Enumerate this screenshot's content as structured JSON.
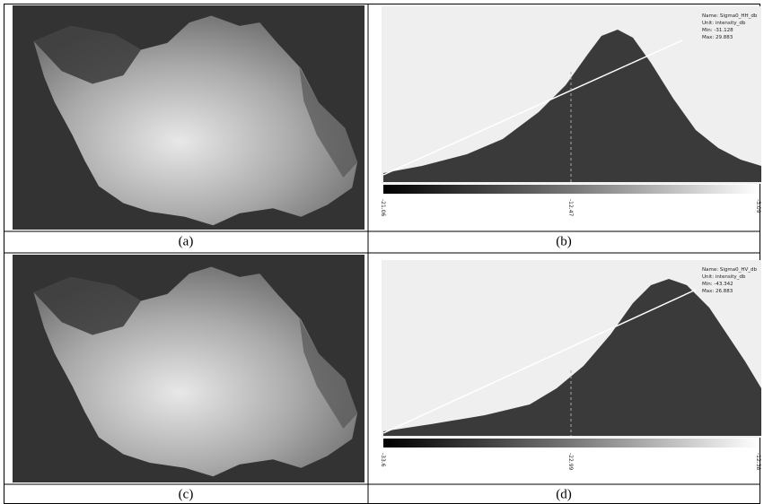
{
  "panels": [
    {
      "caption": "(a)"
    },
    {
      "caption": "(b)",
      "info": [
        "Name: Sigma0_HH_db",
        "Unit: intensity_db",
        "Min: -31.128",
        "Max: 29.883"
      ],
      "slider": [
        "-21.06",
        "-12.47",
        "-3.09"
      ]
    },
    {
      "caption": "(c)"
    },
    {
      "caption": "(d)",
      "info": [
        "Name: Sigma0_HV_db",
        "Unit: intensity_db",
        "Min: -43.342",
        "Max: 26.883"
      ],
      "slider": [
        "-33.6",
        "-22.99",
        "-12.38"
      ]
    }
  ]
}
